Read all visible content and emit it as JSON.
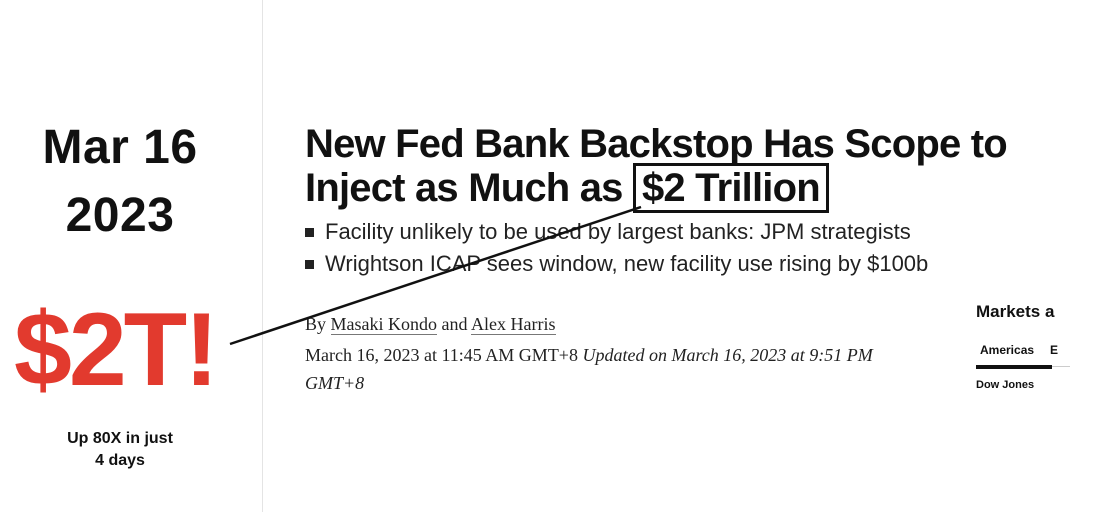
{
  "left": {
    "date_line1": "Mar 16",
    "date_line2": "2023",
    "amount": "$2T!",
    "caption_line1": "Up 80X in just",
    "caption_line2": "4 days",
    "amount_color": "#e23a2e"
  },
  "article": {
    "headline_part1": "New Fed Bank Backstop Has Scope to Inject as Much as ",
    "headline_boxed": "$2 Trillion",
    "bullets": [
      "Facility unlikely to be used by largest banks: JPM strategists",
      "Wrightson ICAP sees window, new facility use rising by $100b"
    ],
    "byline_prefix": "By ",
    "author1": "Masaki Kondo",
    "byline_and": " and ",
    "author2": "Alex Harris",
    "published": "March 16, 2023 at 11:45 AM GMT+8",
    "updated": "Updated on March 16, 2023 at 9:51 PM GMT+8"
  },
  "markets_widget": {
    "title": "Markets a",
    "tab_active": "Americas",
    "tab_next": "E",
    "index_label": "Dow Jones"
  }
}
